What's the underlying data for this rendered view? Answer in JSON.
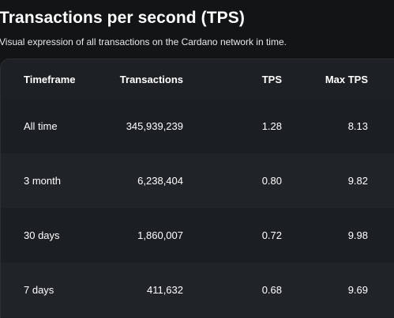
{
  "header": {
    "title": "Transactions per second (TPS)",
    "subtitle": "Visual expression of all transactions on the Cardano network in time."
  },
  "table": {
    "columns": [
      "Timeframe",
      "Transactions",
      "TPS",
      "Max TPS"
    ],
    "rows": [
      [
        "All time",
        "345,939,239",
        "1.28",
        "8.13"
      ],
      [
        "3 month",
        "6,238,404",
        "0.80",
        "9.82"
      ],
      [
        "30 days",
        "1,860,007",
        "0.72",
        "9.98"
      ],
      [
        "7 days",
        "411,632",
        "0.68",
        "9.69"
      ]
    ]
  },
  "colors": {
    "background": "#121416",
    "card": "#1c1f23",
    "row_alt": "#202428",
    "text": "#ffffff"
  }
}
